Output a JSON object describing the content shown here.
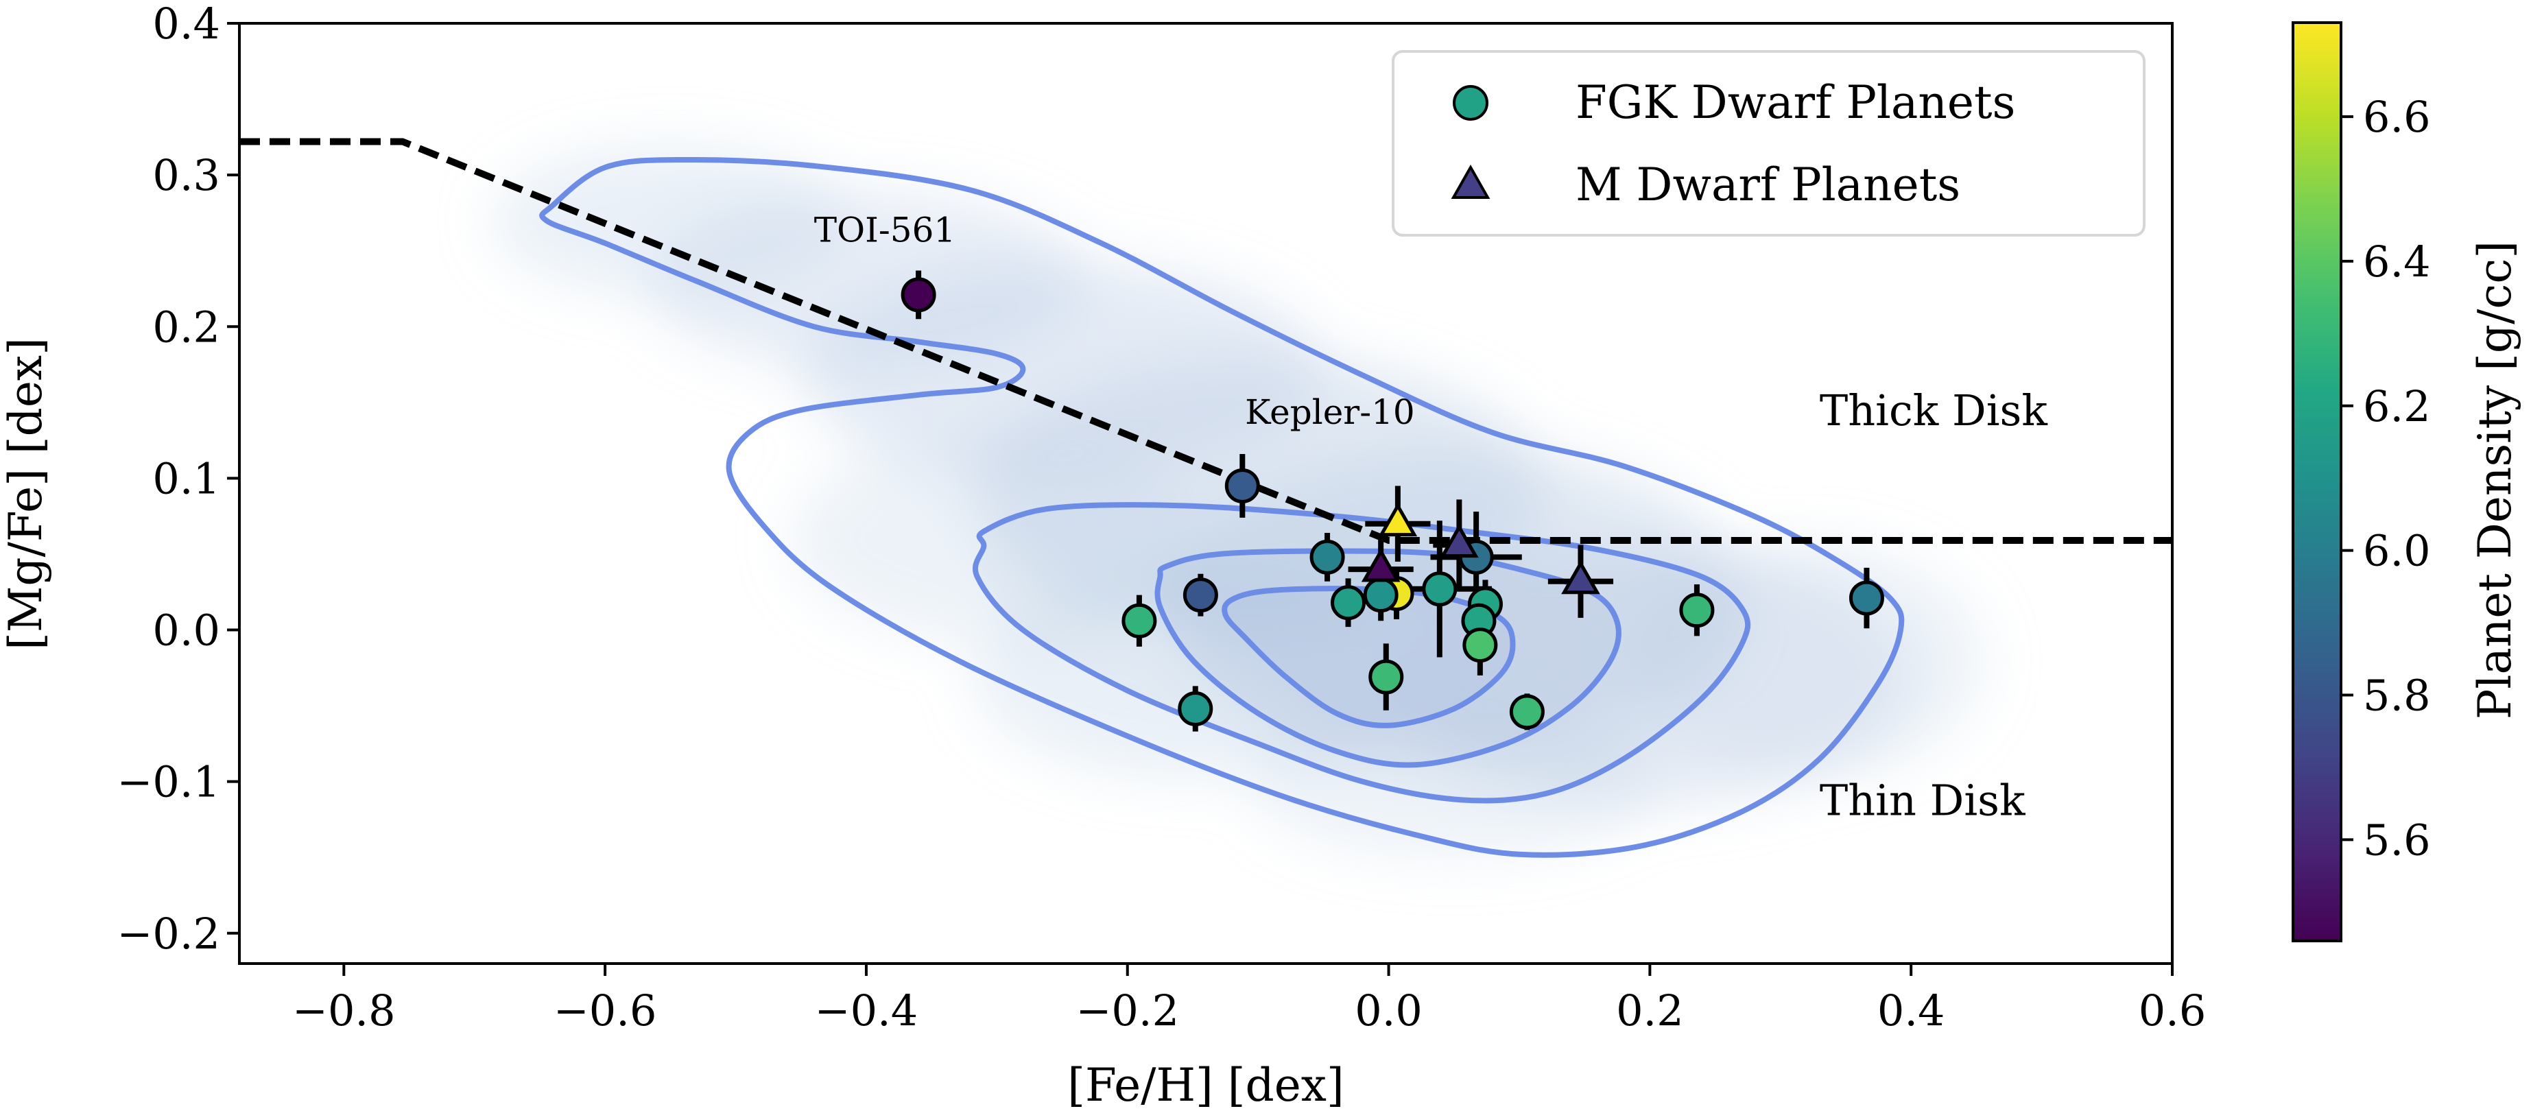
{
  "chart_data": {
    "type": "scatter",
    "title": "",
    "xlabel": "[Fe/H] [dex]",
    "ylabel": "[Mg/Fe] [dex]",
    "xlim": [
      -0.88,
      0.6
    ],
    "ylim": [
      -0.22,
      0.4
    ],
    "xticks": [
      -0.8,
      -0.6,
      -0.4,
      -0.2,
      0.0,
      0.2,
      0.4,
      0.6
    ],
    "xtick_labels": [
      "−0.8",
      "−0.6",
      "−0.4",
      "−0.2",
      "0.0",
      "0.2",
      "0.4",
      "0.6"
    ],
    "yticks": [
      -0.2,
      -0.1,
      0.0,
      0.1,
      0.2,
      0.3,
      0.4
    ],
    "ytick_labels": [
      "−0.2",
      "−0.1",
      "0.0",
      "0.1",
      "0.2",
      "0.3",
      "0.4"
    ],
    "grid": false,
    "colorbar": {
      "label": "Planet Density [g/cc]",
      "colormap": "viridis",
      "range": [
        5.46,
        6.73
      ],
      "ticks": [
        5.6,
        5.8,
        6.0,
        6.2,
        6.4,
        6.6
      ],
      "tick_labels": [
        "5.6",
        "5.8",
        "6.0",
        "6.2",
        "6.4",
        "6.6"
      ]
    },
    "legend": {
      "placement": "top-right",
      "entries": [
        {
          "label": "FGK Dwarf Planets",
          "marker": "circle",
          "color": "#21a185"
        },
        {
          "label": "M Dwarf Planets",
          "marker": "triangle",
          "color": "#453f87"
        }
      ]
    },
    "divider_line": {
      "style": "dashed",
      "points": [
        [
          -0.88,
          0.322
        ],
        [
          -0.755,
          0.322
        ],
        [
          0.0,
          0.059
        ],
        [
          0.6,
          0.059
        ]
      ]
    },
    "region_labels": [
      {
        "text": "Thick Disk",
        "x": 0.33,
        "y": 0.135
      },
      {
        "text": "Thin Disk",
        "x": 0.33,
        "y": -0.122
      }
    ],
    "annotations": [
      {
        "text": "TOI-561",
        "x": -0.44,
        "y": 0.256
      },
      {
        "text": "Kepler-10",
        "x": -0.11,
        "y": 0.136
      }
    ],
    "density_contours": {
      "color": "#6d8ce6",
      "levels": [
        [
          [
            -0.64,
            0.28
          ],
          [
            -0.6,
            0.305
          ],
          [
            -0.54,
            0.31
          ],
          [
            -0.44,
            0.306
          ],
          [
            -0.32,
            0.29
          ],
          [
            -0.22,
            0.255
          ],
          [
            -0.12,
            0.21
          ],
          [
            -0.02,
            0.168
          ],
          [
            0.08,
            0.13
          ],
          [
            0.18,
            0.108
          ],
          [
            0.28,
            0.075
          ],
          [
            0.345,
            0.045
          ],
          [
            0.385,
            0.02
          ],
          [
            0.392,
            0.0
          ],
          [
            0.375,
            -0.035
          ],
          [
            0.33,
            -0.085
          ],
          [
            0.27,
            -0.12
          ],
          [
            0.19,
            -0.143
          ],
          [
            0.1,
            -0.148
          ],
          [
            0.02,
            -0.135
          ],
          [
            -0.08,
            -0.11
          ],
          [
            -0.2,
            -0.07
          ],
          [
            -0.33,
            -0.02
          ],
          [
            -0.43,
            0.03
          ],
          [
            -0.48,
            0.07
          ],
          [
            -0.505,
            0.105
          ],
          [
            -0.49,
            0.13
          ],
          [
            -0.45,
            0.145
          ],
          [
            -0.36,
            0.155
          ],
          [
            -0.3,
            0.16
          ],
          [
            -0.28,
            0.172
          ],
          [
            -0.3,
            0.182
          ],
          [
            -0.36,
            0.19
          ],
          [
            -0.44,
            0.2
          ],
          [
            -0.53,
            0.23
          ],
          [
            -0.6,
            0.255
          ],
          [
            -0.645,
            0.27
          ]
        ],
        [
          [
            -0.31,
            0.065
          ],
          [
            -0.26,
            0.08
          ],
          [
            -0.16,
            0.082
          ],
          [
            -0.04,
            0.075
          ],
          [
            0.06,
            0.065
          ],
          [
            0.16,
            0.053
          ],
          [
            0.24,
            0.035
          ],
          [
            0.272,
            0.012
          ],
          [
            0.27,
            -0.01
          ],
          [
            0.24,
            -0.045
          ],
          [
            0.18,
            -0.085
          ],
          [
            0.12,
            -0.108
          ],
          [
            0.055,
            -0.112
          ],
          [
            -0.02,
            -0.1
          ],
          [
            -0.1,
            -0.075
          ],
          [
            -0.2,
            -0.04
          ],
          [
            -0.28,
            0.0
          ],
          [
            -0.315,
            0.035
          ],
          [
            -0.31,
            0.055
          ]
        ],
        [
          [
            -0.17,
            0.042
          ],
          [
            -0.13,
            0.05
          ],
          [
            -0.04,
            0.052
          ],
          [
            0.04,
            0.05
          ],
          [
            0.1,
            0.04
          ],
          [
            0.155,
            0.025
          ],
          [
            0.175,
            0.005
          ],
          [
            0.17,
            -0.02
          ],
          [
            0.14,
            -0.05
          ],
          [
            0.09,
            -0.075
          ],
          [
            0.02,
            -0.089
          ],
          [
            -0.04,
            -0.08
          ],
          [
            -0.1,
            -0.055
          ],
          [
            -0.15,
            -0.02
          ],
          [
            -0.175,
            0.015
          ],
          [
            -0.175,
            0.035
          ]
        ],
        [
          [
            -0.12,
            0.02
          ],
          [
            -0.09,
            0.026
          ],
          [
            -0.02,
            0.027
          ],
          [
            0.04,
            0.022
          ],
          [
            0.085,
            0.008
          ],
          [
            0.095,
            -0.01
          ],
          [
            0.085,
            -0.03
          ],
          [
            0.05,
            -0.052
          ],
          [
            0.0,
            -0.063
          ],
          [
            -0.04,
            -0.055
          ],
          [
            -0.08,
            -0.03
          ],
          [
            -0.11,
            -0.005
          ],
          [
            -0.125,
            0.01
          ]
        ]
      ]
    },
    "series": [
      {
        "name": "FGK Dwarf Planets",
        "marker": "circle",
        "points": [
          {
            "label": "TOI-561",
            "x": -0.36,
            "y": 0.221,
            "xerr": 0.0,
            "yerr": 0.016,
            "density": 5.46
          },
          {
            "label": "Kepler-10",
            "x": -0.112,
            "y": 0.095,
            "xerr": 0.0,
            "yerr": 0.021,
            "density": 5.82
          },
          {
            "x": -0.191,
            "y": 0.006,
            "xerr": 0.0,
            "yerr": 0.017,
            "density": 6.28
          },
          {
            "x": -0.144,
            "y": 0.023,
            "xerr": 0.0,
            "yerr": 0.014,
            "density": 5.8
          },
          {
            "x": -0.148,
            "y": -0.052,
            "xerr": 0.0,
            "yerr": 0.015,
            "density": 6.12
          },
          {
            "x": -0.047,
            "y": 0.048,
            "xerr": 0.0,
            "yerr": 0.016,
            "density": 6.02
          },
          {
            "x": -0.031,
            "y": 0.018,
            "xerr": 0.0,
            "yerr": 0.016,
            "density": 6.18
          },
          {
            "x": 0.006,
            "y": 0.024,
            "xerr": 0.0,
            "yerr": 0.017,
            "density": 6.7
          },
          {
            "x": -0.006,
            "y": 0.023,
            "xerr": 0.0,
            "yerr": 0.017,
            "density": 6.1
          },
          {
            "x": 0.039,
            "y": 0.027,
            "xerr": 0.04,
            "yerr": 0.045,
            "density": 6.16
          },
          {
            "x": 0.067,
            "y": 0.048,
            "xerr": 0.035,
            "yerr": 0.03,
            "density": 5.92
          },
          {
            "x": 0.074,
            "y": 0.017,
            "xerr": 0.0,
            "yerr": 0.016,
            "density": 6.2
          },
          {
            "x": 0.069,
            "y": 0.006,
            "xerr": 0.0,
            "yerr": 0.016,
            "density": 6.2
          },
          {
            "x": 0.07,
            "y": -0.01,
            "xerr": 0.0,
            "yerr": 0.02,
            "density": 6.36
          },
          {
            "x": -0.002,
            "y": -0.031,
            "xerr": 0.0,
            "yerr": 0.022,
            "density": 6.32
          },
          {
            "x": 0.106,
            "y": -0.054,
            "xerr": 0.0,
            "yerr": 0.012,
            "density": 6.32
          },
          {
            "x": 0.236,
            "y": 0.013,
            "xerr": 0.0,
            "yerr": 0.017,
            "density": 6.3
          },
          {
            "x": 0.366,
            "y": 0.021,
            "xerr": 0.0,
            "yerr": 0.02,
            "density": 5.98
          }
        ]
      },
      {
        "name": "M Dwarf Planets",
        "marker": "triangle",
        "points": [
          {
            "x": 0.007,
            "y": 0.07,
            "xerr": 0.025,
            "yerr": 0.025,
            "density": 6.72
          },
          {
            "x": -0.006,
            "y": 0.04,
            "xerr": 0.025,
            "yerr": 0.02,
            "density": 5.48
          },
          {
            "x": 0.054,
            "y": 0.056,
            "xerr": 0.02,
            "yerr": 0.03,
            "density": 5.68
          },
          {
            "x": 0.147,
            "y": 0.032,
            "xerr": 0.025,
            "yerr": 0.024,
            "density": 5.7
          }
        ]
      }
    ]
  }
}
